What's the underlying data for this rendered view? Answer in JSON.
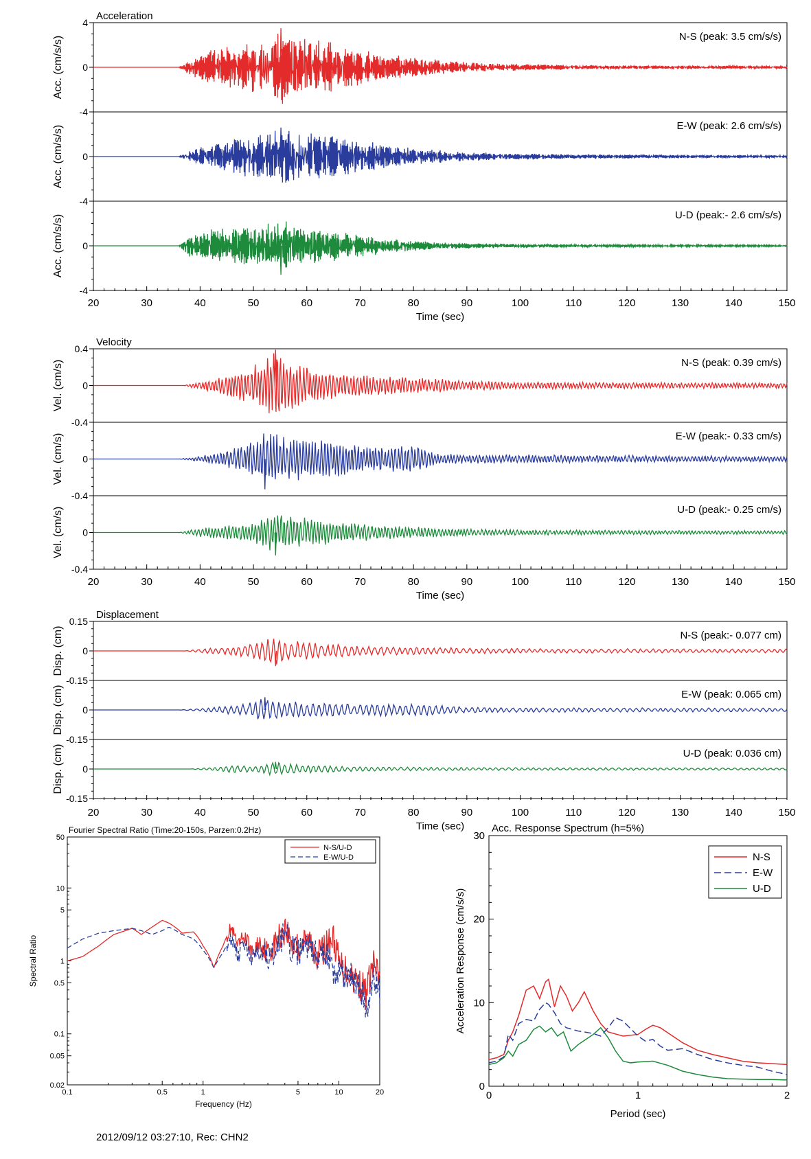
{
  "chart_data": [
    {
      "type": "line",
      "title": "Acceleration",
      "xlabel": "Time (sec)",
      "xlim": [
        20,
        150
      ],
      "xticks": [
        20,
        30,
        40,
        50,
        60,
        70,
        80,
        90,
        100,
        110,
        120,
        130,
        140,
        150
      ],
      "ylim": [
        -4,
        4
      ],
      "yticks": [
        "4",
        "0",
        "-4"
      ],
      "series": [
        {
          "component": "N-S",
          "ylabel": "Acc. (cm/s/s)",
          "annotation": "N-S (peak: 3.5 cm/s/s)",
          "peak": 3.5,
          "onset": 36,
          "color": "#e32b2b",
          "envelope": {
            "x": [
              20,
              36,
              38,
              42,
              48,
              52,
              55,
              58,
              62,
              66,
              70,
              75,
              80,
              90,
              100,
              110,
              120,
              130,
              150
            ],
            "y": [
              0,
              0,
              0.7,
              1.6,
              2.1,
              2.7,
              3.5,
              2.8,
              2.6,
              2.1,
              1.7,
              1.2,
              0.9,
              0.45,
              0.3,
              0.22,
              0.18,
              0.15,
              0.12
            ]
          }
        },
        {
          "component": "E-W",
          "ylabel": "Acc. (cm/s/s)",
          "annotation": "E-W (peak: 2.6 cm/s/s)",
          "peak": 2.6,
          "onset": 36,
          "color": "#2b3d9c",
          "envelope": {
            "x": [
              20,
              36,
              38,
              42,
              48,
              52,
              55,
              58,
              62,
              66,
              70,
              75,
              80,
              90,
              100,
              110,
              120,
              130,
              150
            ],
            "y": [
              0,
              0,
              0.5,
              1.2,
              1.8,
              2.2,
              2.6,
              2.3,
              2.1,
              1.8,
              1.5,
              1.1,
              0.8,
              0.4,
              0.3,
              0.22,
              0.18,
              0.15,
              0.12
            ]
          }
        },
        {
          "component": "U-D",
          "ylabel": "Acc. (cm/s/s)",
          "annotation": "U-D (peak:- 2.6 cm/s/s)",
          "peak": -2.6,
          "onset": 36,
          "color": "#1e8a3c",
          "envelope": {
            "x": [
              20,
              36,
              38,
              42,
              48,
              52,
              55,
              58,
              62,
              66,
              70,
              75,
              80,
              90,
              100,
              110,
              120,
              130,
              150
            ],
            "y": [
              0,
              0,
              1.0,
              1.5,
              1.7,
              1.9,
              2.6,
              1.9,
              1.6,
              1.3,
              1.0,
              0.7,
              0.45,
              0.25,
              0.18,
              0.15,
              0.12,
              0.1,
              0.08
            ]
          }
        }
      ]
    },
    {
      "type": "line",
      "title": "Velocity",
      "xlabel": "Time (sec)",
      "xlim": [
        20,
        150
      ],
      "xticks": [
        20,
        30,
        40,
        50,
        60,
        70,
        80,
        90,
        100,
        110,
        120,
        130,
        140,
        150
      ],
      "ylim": [
        -0.4,
        0.4
      ],
      "yticks": [
        "0.4",
        "0",
        "-0.4"
      ],
      "series": [
        {
          "component": "N-S",
          "ylabel": "Vel. (cm/s)",
          "annotation": "N-S (peak: 0.39 cm/s)",
          "peak": 0.39,
          "onset": 37,
          "color": "#e32b2b",
          "envelope": {
            "x": [
              20,
              37,
              40,
              45,
              50,
              54,
              58,
              62,
              66,
              70,
              75,
              80,
              90,
              100,
              120,
              150
            ],
            "y": [
              0,
              0,
              0.05,
              0.12,
              0.22,
              0.39,
              0.25,
              0.18,
              0.14,
              0.12,
              0.1,
              0.09,
              0.06,
              0.04,
              0.035,
              0.03
            ]
          }
        },
        {
          "component": "E-W",
          "ylabel": "Vel. (cm/s)",
          "annotation": "E-W (peak:- 0.33 cm/s)",
          "peak": -0.33,
          "onset": 36,
          "color": "#2b3d9c",
          "envelope": {
            "x": [
              20,
              36,
              40,
              45,
              50,
              52,
              56,
              60,
              65,
              70,
              75,
              81,
              84,
              90,
              100,
              120,
              150
            ],
            "y": [
              0,
              0,
              0.03,
              0.1,
              0.2,
              0.33,
              0.25,
              0.22,
              0.2,
              0.17,
              0.15,
              0.15,
              0.06,
              0.05,
              0.05,
              0.04,
              0.03
            ]
          }
        },
        {
          "component": "U-D",
          "ylabel": "Vel. (cm/s)",
          "annotation": "U-D (peak:- 0.25 cm/s)",
          "peak": -0.25,
          "onset": 36,
          "color": "#1e8a3c",
          "envelope": {
            "x": [
              20,
              36,
              40,
              45,
              50,
              54,
              58,
              62,
              66,
              70,
              75,
              80,
              90,
              100,
              120,
              150
            ],
            "y": [
              0,
              0,
              0.05,
              0.08,
              0.1,
              0.25,
              0.18,
              0.15,
              0.12,
              0.1,
              0.08,
              0.06,
              0.04,
              0.03,
              0.025,
              0.02
            ]
          }
        }
      ]
    },
    {
      "type": "line",
      "title": "Displacement",
      "xlabel": "Time (sec)",
      "xlim": [
        20,
        150
      ],
      "xticks": [
        20,
        30,
        40,
        50,
        60,
        70,
        80,
        90,
        100,
        110,
        120,
        130,
        140,
        150
      ],
      "ylim": [
        -0.15,
        0.15
      ],
      "yticks": [
        "0.15",
        "0",
        "-0.15"
      ],
      "series": [
        {
          "component": "N-S",
          "ylabel": "Disp. (cm)",
          "annotation": "N-S (peak:- 0.077 cm)",
          "peak": -0.077,
          "onset": 37,
          "color": "#e32b2b",
          "envelope": {
            "x": [
              20,
              37,
              40,
              45,
              50,
              54,
              58,
              62,
              66,
              70,
              80,
              90,
              100,
              150
            ],
            "y": [
              0,
              0,
              0.01,
              0.02,
              0.04,
              0.077,
              0.05,
              0.04,
              0.035,
              0.025,
              0.02,
              0.015,
              0.012,
              0.01
            ]
          }
        },
        {
          "component": "E-W",
          "ylabel": "Disp. (cm)",
          "annotation": "E-W (peak: 0.065 cm)",
          "peak": 0.065,
          "onset": 36,
          "color": "#2b3d9c",
          "envelope": {
            "x": [
              20,
              36,
              40,
              45,
              50,
              52,
              56,
              60,
              66,
              70,
              75,
              82,
              90,
              100,
              150
            ],
            "y": [
              0,
              0,
              0.008,
              0.02,
              0.04,
              0.065,
              0.045,
              0.04,
              0.035,
              0.03,
              0.035,
              0.03,
              0.015,
              0.012,
              0.01
            ]
          }
        },
        {
          "component": "U-D",
          "ylabel": "Disp. (cm)",
          "annotation": "U-D (peak: 0.036 cm)",
          "peak": 0.036,
          "onset": 38,
          "color": "#1e8a3c",
          "envelope": {
            "x": [
              20,
              38,
              42,
              46,
              50,
              54,
              58,
              62,
              66,
              70,
              80,
              90,
              150
            ],
            "y": [
              0,
              0,
              0.008,
              0.02,
              0.015,
              0.036,
              0.025,
              0.02,
              0.015,
              0.012,
              0.01,
              0.008,
              0.006
            ]
          }
        }
      ]
    },
    {
      "type": "line",
      "title": "Fourier Spectral Ratio (Time:20-150s, Parzen:0.2Hz)",
      "xlabel": "Frequency (Hz)",
      "ylabel": "Spectral Ratio",
      "xscale": "log",
      "yscale": "log",
      "xlim": [
        0.1,
        20
      ],
      "ylim": [
        0.02,
        50
      ],
      "xticks": [
        0.1,
        0.5,
        1,
        5,
        10,
        20
      ],
      "xticklabels": [
        "0.1",
        "0.5",
        "1",
        "5",
        "10",
        "20"
      ],
      "yticks": [
        0.02,
        0.05,
        0.1,
        0.5,
        1,
        5,
        10,
        50
      ],
      "yticklabels": [
        "0.02",
        "0.05",
        "0.1",
        "0.5",
        "1",
        "5",
        "10",
        "50"
      ],
      "legend_position": "top-right",
      "series": [
        {
          "name": "N-S/U-D",
          "color": "#e32b2b",
          "dash": false,
          "x": [
            0.1,
            0.13,
            0.17,
            0.22,
            0.3,
            0.35,
            0.42,
            0.5,
            0.56,
            0.7,
            0.85,
            1.0,
            1.2,
            1.4,
            1.6,
            1.8,
            2.0,
            2.3,
            2.6,
            3.0,
            3.4,
            4.0,
            4.5,
            5.0,
            6.0,
            7.0,
            8.0,
            9.0,
            10,
            12,
            14,
            16,
            18,
            20
          ],
          "y": [
            1.0,
            1.15,
            1.6,
            2.3,
            2.8,
            2.3,
            2.9,
            3.6,
            3.3,
            2.4,
            2.5,
            1.6,
            0.8,
            1.6,
            2.8,
            1.5,
            2.2,
            1.2,
            1.8,
            1.3,
            1.7,
            2.8,
            1.8,
            1.5,
            1.9,
            1.2,
            1.5,
            2.1,
            0.9,
            0.7,
            0.5,
            0.35,
            0.9,
            0.5
          ]
        },
        {
          "name": "E-W/U-D",
          "color": "#2b3d9c",
          "dash": true,
          "x": [
            0.1,
            0.13,
            0.17,
            0.22,
            0.3,
            0.35,
            0.42,
            0.5,
            0.56,
            0.7,
            0.85,
            1.0,
            1.2,
            1.4,
            1.6,
            1.8,
            2.0,
            2.3,
            2.6,
            3.0,
            3.4,
            4.0,
            4.5,
            5.0,
            6.0,
            7.0,
            8.0,
            9.0,
            10,
            12,
            14,
            16,
            18,
            20
          ],
          "y": [
            1.5,
            2.0,
            2.4,
            2.6,
            2.8,
            2.6,
            2.3,
            2.6,
            2.9,
            2.3,
            2.0,
            1.4,
            0.8,
            1.3,
            2.0,
            1.1,
            1.8,
            1.0,
            1.5,
            1.1,
            1.4,
            2.2,
            1.5,
            1.3,
            1.6,
            1.0,
            1.2,
            0.8,
            0.7,
            0.6,
            0.4,
            0.2,
            0.6,
            0.4
          ]
        }
      ]
    },
    {
      "type": "line",
      "title": "Acc. Response Spectrum (h=5%)",
      "xlabel": "Period (sec)",
      "ylabel": "Acceleration Response (cm/s/s)",
      "xlim": [
        0,
        2
      ],
      "ylim": [
        0,
        30
      ],
      "xticks": [
        0,
        1,
        2
      ],
      "yticks": [
        0,
        10,
        20,
        30
      ],
      "legend_position": "top-right",
      "series": [
        {
          "name": "N-S",
          "color": "#e32b2b",
          "dash": false,
          "x": [
            0,
            0.05,
            0.1,
            0.13,
            0.16,
            0.2,
            0.25,
            0.3,
            0.34,
            0.38,
            0.4,
            0.44,
            0.48,
            0.52,
            0.56,
            0.6,
            0.64,
            0.7,
            0.75,
            0.8,
            0.9,
            1.0,
            1.05,
            1.1,
            1.15,
            1.2,
            1.3,
            1.4,
            1.5,
            1.6,
            1.7,
            1.8,
            1.9,
            2.0
          ],
          "y": [
            3.2,
            3.4,
            3.8,
            5.5,
            6.5,
            8.5,
            11.5,
            12.0,
            10.5,
            12.5,
            12.8,
            9.5,
            12.0,
            10.8,
            9.0,
            10.0,
            11.3,
            9.0,
            7.5,
            6.5,
            6.0,
            6.2,
            6.8,
            7.3,
            7.0,
            6.4,
            5.2,
            4.3,
            3.8,
            3.4,
            3.0,
            2.8,
            2.7,
            2.6
          ]
        },
        {
          "name": "E-W",
          "color": "#2b3d9c",
          "dash": true,
          "x": [
            0,
            0.05,
            0.1,
            0.13,
            0.16,
            0.2,
            0.25,
            0.3,
            0.34,
            0.38,
            0.4,
            0.44,
            0.48,
            0.52,
            0.56,
            0.6,
            0.64,
            0.7,
            0.75,
            0.8,
            0.85,
            0.9,
            1.0,
            1.05,
            1.1,
            1.15,
            1.2,
            1.3,
            1.4,
            1.5,
            1.6,
            1.7,
            1.8,
            1.9,
            2.0
          ],
          "y": [
            2.8,
            3.0,
            3.5,
            6.2,
            5.5,
            7.5,
            8.0,
            7.8,
            9.2,
            10.0,
            9.8,
            8.8,
            7.5,
            7.0,
            6.8,
            6.6,
            6.5,
            6.3,
            6.0,
            7.0,
            8.2,
            7.8,
            6.0,
            5.4,
            5.6,
            4.8,
            4.3,
            4.5,
            3.8,
            3.2,
            2.8,
            2.5,
            2.3,
            1.8,
            1.4
          ]
        },
        {
          "name": "U-D",
          "color": "#1e8a3c",
          "dash": false,
          "x": [
            0,
            0.05,
            0.1,
            0.13,
            0.16,
            0.2,
            0.25,
            0.3,
            0.34,
            0.38,
            0.42,
            0.46,
            0.5,
            0.55,
            0.6,
            0.65,
            0.7,
            0.75,
            0.8,
            0.85,
            0.9,
            0.95,
            1.0,
            1.1,
            1.2,
            1.3,
            1.4,
            1.5,
            1.6,
            1.7,
            1.8,
            1.9,
            2.0
          ],
          "y": [
            2.6,
            2.8,
            3.4,
            4.2,
            3.6,
            5.0,
            5.5,
            6.8,
            7.2,
            6.5,
            7.0,
            6.0,
            6.5,
            4.2,
            5.0,
            5.6,
            6.2,
            7.0,
            5.8,
            4.2,
            3.0,
            2.8,
            2.9,
            3.0,
            2.5,
            1.8,
            1.4,
            1.1,
            0.9,
            0.85,
            0.8,
            0.8,
            0.75
          ]
        }
      ]
    }
  ],
  "footer": "2012/09/12 03:27:10, Rec: CHN2"
}
